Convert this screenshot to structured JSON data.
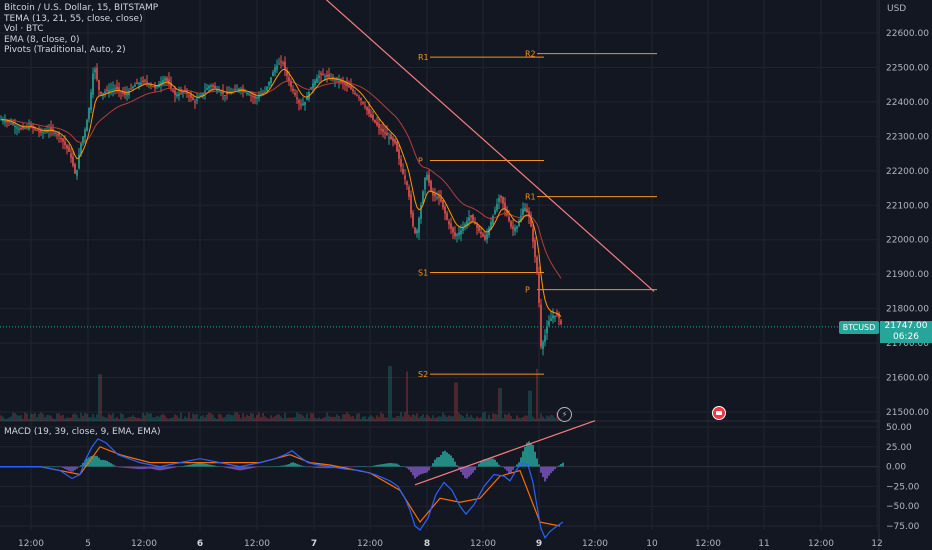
{
  "legend": {
    "title": "Bitcoin / U.S. Dollar, 15, BITSTAMP",
    "studies": [
      "TEMA (13, 21, 55, close, close)",
      "Vol · BTC",
      "EMA (8, close, 0)",
      "Pivots (Traditional, Auto, 2)"
    ],
    "macd": "MACD (19, 39, close, 9, EMA, EMA)"
  },
  "ticker": {
    "symbol": "BTCUSD",
    "price": "21747.00",
    "countdown": "06:26"
  },
  "colors": {
    "background": "#131722",
    "grid": "#1f2430",
    "axis_text": "#b2b5be",
    "up": "#26a69a",
    "down": "#ef5350",
    "pivot": "#f7931a",
    "trendline": "#f77c80",
    "tema": "#b33e3e",
    "ema": "#ff9800",
    "macd_line": "#2962ff",
    "signal_line": "#ff6d00",
    "hist_pos": "#26a69a",
    "hist_neg": "#7e57c2"
  },
  "icons": {
    "flash": "lightning-icon",
    "flag": "flag-icon"
  },
  "chart_data": [
    {
      "type": "line",
      "subtype": "candlestick",
      "title": "Bitcoin / U.S. Dollar, 15, BITSTAMP",
      "y_unit": "USD",
      "ylim": [
        21480,
        22700
      ],
      "y_ticks": [
        21500,
        21600,
        21700,
        21800,
        21900,
        22000,
        22100,
        22200,
        22300,
        22400,
        22500,
        22600
      ],
      "x_ticks": [
        "12:00",
        "5",
        "12:00",
        "6",
        "12:00",
        "7",
        "12:00",
        "8",
        "12:00",
        "9",
        "12:00",
        "10",
        "12:00",
        "11",
        "12:00",
        "12"
      ],
      "bold_ticks": [
        "6",
        "7",
        "8",
        "9"
      ],
      "price_path": {
        "x": [
          0,
          10,
          20,
          30,
          40,
          50,
          60,
          70,
          76,
          80,
          86,
          90,
          94,
          100,
          105,
          115,
          125,
          135,
          145,
          155,
          165,
          175,
          185,
          195,
          210,
          225,
          240,
          255,
          265,
          275,
          282,
          290,
          300,
          305,
          312,
          320,
          330,
          340,
          350,
          360,
          370,
          380,
          388,
          395,
          402,
          408,
          412,
          416,
          420,
          426,
          432,
          440,
          448,
          455,
          462,
          470,
          478,
          485,
          492,
          500,
          506,
          512,
          518,
          524,
          530,
          535,
          538,
          541,
          544,
          548,
          553,
          558,
          562
        ],
        "close": [
          22350,
          22340,
          22320,
          22330,
          22310,
          22320,
          22300,
          22250,
          22180,
          22270,
          22330,
          22400,
          22510,
          22420,
          22430,
          22440,
          22420,
          22450,
          22460,
          22440,
          22470,
          22420,
          22430,
          22400,
          22450,
          22420,
          22440,
          22410,
          22430,
          22500,
          22520,
          22450,
          22390,
          22400,
          22450,
          22480,
          22470,
          22460,
          22440,
          22410,
          22360,
          22320,
          22300,
          22280,
          22200,
          22150,
          22050,
          22010,
          22080,
          22200,
          22130,
          22120,
          22050,
          22010,
          22030,
          22070,
          22030,
          22000,
          22060,
          22130,
          22080,
          22030,
          22040,
          22100,
          22060,
          21950,
          21880,
          21690,
          21710,
          21760,
          21780,
          21780,
          21747
        ]
      },
      "volume_spikes": [
        {
          "x": 100,
          "volume": 85
        },
        {
          "x": 390,
          "volume": 100
        },
        {
          "x": 407,
          "volume": 90
        },
        {
          "x": 456,
          "volume": 70
        },
        {
          "x": 500,
          "volume": 60
        },
        {
          "x": 530,
          "volume": 55
        },
        {
          "x": 537,
          "volume": 95
        }
      ],
      "pivots": [
        {
          "label": "R2",
          "value": 22540,
          "x": [
            537,
            657
          ]
        },
        {
          "label": "R1",
          "value": 22530,
          "x": [
            430,
            544
          ]
        },
        {
          "label": "P",
          "value": 22230,
          "x": [
            430,
            544
          ]
        },
        {
          "label": "R1",
          "value": 22125,
          "x": [
            537,
            657
          ]
        },
        {
          "label": "S1",
          "value": 21905,
          "x": [
            430,
            544
          ]
        },
        {
          "label": "P",
          "value": 21855,
          "x": [
            537,
            657
          ]
        },
        {
          "label": "S2",
          "value": 21610,
          "x": [
            430,
            544
          ]
        }
      ],
      "trendline": {
        "from": [
          325,
          22700
        ],
        "to": [
          654,
          21850
        ]
      },
      "current_price": 21747
    },
    {
      "type": "line",
      "title": "MACD (19, 39, close, 9, EMA, EMA)",
      "ylim": [
        -85,
        58
      ],
      "y_ticks": [
        50,
        25,
        0,
        -25,
        -50,
        -75
      ],
      "macd": {
        "x": [
          0,
          20,
          40,
          60,
          72,
          80,
          86,
          92,
          98,
          106,
          118,
          140,
          160,
          180,
          200,
          220,
          240,
          260,
          275,
          285,
          292,
          300,
          308,
          318,
          330,
          345,
          360,
          375,
          390,
          398,
          405,
          410,
          415,
          420,
          428,
          436,
          444,
          452,
          460,
          466,
          474,
          484,
          494,
          504,
          510,
          516,
          522,
          528,
          533,
          537,
          541,
          545,
          550,
          556,
          563
        ],
        "y": [
          0,
          0,
          0,
          -5,
          -15,
          -10,
          10,
          25,
          35,
          30,
          15,
          5,
          0,
          5,
          10,
          5,
          0,
          5,
          10,
          15,
          20,
          12,
          5,
          2,
          0,
          -3,
          -5,
          -10,
          -18,
          -25,
          -40,
          -55,
          -75,
          -80,
          -65,
          -35,
          -20,
          -30,
          -50,
          -60,
          -48,
          -25,
          -10,
          -12,
          -18,
          -5,
          5,
          2,
          -20,
          -50,
          -78,
          -90,
          -82,
          -76,
          -70
        ]
      },
      "signal": {
        "x": [
          0,
          40,
          80,
          100,
          120,
          150,
          200,
          260,
          290,
          310,
          330,
          370,
          400,
          420,
          440,
          460,
          480,
          500,
          520,
          540,
          560
        ],
        "y": [
          0,
          0,
          -10,
          25,
          15,
          5,
          5,
          5,
          15,
          5,
          2,
          -8,
          -30,
          -70,
          -40,
          -45,
          -40,
          -12,
          -5,
          -70,
          -75
        ]
      },
      "trendline": {
        "from": [
          415,
          -23
        ],
        "to": [
          595,
          58
        ]
      }
    }
  ]
}
